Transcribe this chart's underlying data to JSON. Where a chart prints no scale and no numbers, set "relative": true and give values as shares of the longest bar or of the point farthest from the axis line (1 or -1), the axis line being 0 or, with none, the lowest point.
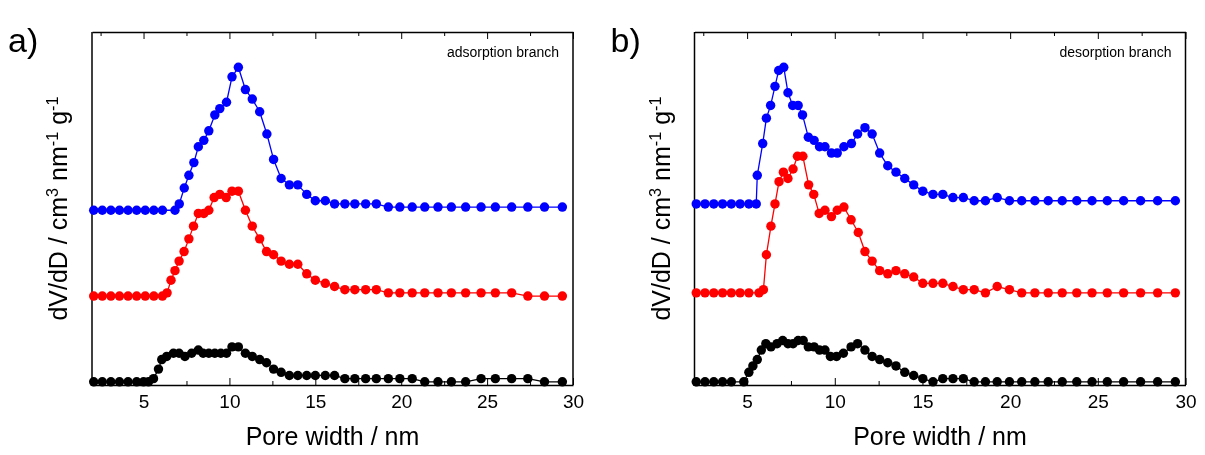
{
  "chart_data": [
    {
      "type": "line",
      "title": "a)",
      "xlabel": "Pore width / nm",
      "ylabel": "dV/dD / cm$^{3}$ nm$^{-1}$ g$^{-1}$",
      "annotations": [
        "adsorption branch"
      ],
      "relative": true,
      "xlim": [
        2,
        30
      ],
      "xticks": [
        {
          "value": 2.5,
          "label": null
        },
        5,
        {
          "value": 7.5,
          "label": null
        },
        10,
        {
          "value": 12.5,
          "label": null
        },
        15,
        {
          "value": 17.5,
          "label": null
        },
        20,
        {
          "value": 22.5,
          "label": null
        },
        25,
        {
          "value": 27.5,
          "label": null
        },
        30
      ],
      "marker": "circle",
      "grid": false,
      "series": [
        {
          "color": "#0000ff",
          "x": [
            2.1,
            2.6,
            3.1,
            3.6,
            4.1,
            4.6,
            5.1,
            5.6,
            6.1,
            6.83,
            7.08,
            7.37,
            7.64,
            7.93,
            8.19,
            8.51,
            8.8,
            9.15,
            9.44,
            9.83,
            10.15,
            10.52,
            10.93,
            11.33,
            11.76,
            12.18,
            12.57,
            13.01,
            13.49,
            13.98,
            14.5,
            15.0,
            15.58,
            16.12,
            16.72,
            17.3,
            17.93,
            18.55,
            19.25,
            19.92,
            20.64,
            21.37,
            22.14,
            22.92,
            23.75,
            24.65,
            25.48,
            26.43,
            27.37,
            28.34,
            29.38
          ],
          "values": [
            0.55,
            0.55,
            0.55,
            0.55,
            0.55,
            0.55,
            0.55,
            0.55,
            0.55,
            0.55,
            0.57,
            0.62,
            0.66,
            0.7,
            0.75,
            0.77,
            0.8,
            0.85,
            0.87,
            0.89,
            0.97,
            1.0,
            0.93,
            0.9,
            0.86,
            0.79,
            0.71,
            0.65,
            0.63,
            0.63,
            0.6,
            0.58,
            0.58,
            0.57,
            0.57,
            0.57,
            0.57,
            0.57,
            0.56,
            0.56,
            0.56,
            0.56,
            0.56,
            0.56,
            0.56,
            0.56,
            0.56,
            0.56,
            0.56,
            0.56,
            0.56
          ]
        },
        {
          "color": "#ff0000",
          "x": [
            2.1,
            2.6,
            3.1,
            3.6,
            4.1,
            4.6,
            5.1,
            5.6,
            6.1,
            6.37,
            6.6,
            6.83,
            7.07,
            7.36,
            7.64,
            7.91,
            8.19,
            8.51,
            8.8,
            9.11,
            9.44,
            9.81,
            10.15,
            10.52,
            10.93,
            11.33,
            11.76,
            12.16,
            12.57,
            13.01,
            13.49,
            13.98,
            14.5,
            15.0,
            15.58,
            16.12,
            16.72,
            17.3,
            17.93,
            18.55,
            19.25,
            19.92,
            20.64,
            21.37,
            22.14,
            22.92,
            23.75,
            24.65,
            25.48,
            26.43,
            27.37,
            28.34,
            29.38
          ],
          "values": [
            0.28,
            0.28,
            0.28,
            0.28,
            0.28,
            0.28,
            0.28,
            0.28,
            0.28,
            0.29,
            0.33,
            0.36,
            0.39,
            0.42,
            0.46,
            0.5,
            0.54,
            0.54,
            0.55,
            0.59,
            0.6,
            0.59,
            0.61,
            0.61,
            0.55,
            0.5,
            0.46,
            0.42,
            0.41,
            0.39,
            0.38,
            0.38,
            0.35,
            0.33,
            0.32,
            0.31,
            0.3,
            0.3,
            0.3,
            0.3,
            0.29,
            0.29,
            0.29,
            0.29,
            0.29,
            0.29,
            0.29,
            0.29,
            0.29,
            0.29,
            0.28,
            0.28,
            0.28
          ]
        },
        {
          "color": "#000000",
          "x": [
            2.1,
            2.6,
            3.1,
            3.6,
            4.1,
            4.6,
            5.0,
            5.29,
            5.58,
            5.87,
            6.06,
            6.35,
            6.74,
            7.07,
            7.41,
            7.8,
            8.19,
            8.47,
            8.8,
            9.15,
            9.5,
            9.83,
            10.15,
            10.52,
            10.93,
            11.33,
            11.76,
            12.16,
            12.57,
            13.01,
            13.49,
            13.98,
            14.5,
            15.0,
            15.58,
            16.12,
            16.72,
            17.3,
            17.93,
            18.55,
            19.25,
            19.92,
            20.64,
            21.37,
            22.14,
            22.92,
            23.75,
            24.65,
            25.48,
            26.43,
            27.37,
            28.34,
            29.38
          ],
          "values": [
            0.01,
            0.01,
            0.01,
            0.01,
            0.01,
            0.01,
            0.01,
            0.01,
            0.02,
            0.05,
            0.08,
            0.09,
            0.1,
            0.1,
            0.09,
            0.1,
            0.11,
            0.1,
            0.1,
            0.1,
            0.1,
            0.1,
            0.12,
            0.12,
            0.1,
            0.09,
            0.08,
            0.07,
            0.05,
            0.04,
            0.03,
            0.03,
            0.03,
            0.03,
            0.03,
            0.03,
            0.02,
            0.02,
            0.02,
            0.02,
            0.02,
            0.02,
            0.02,
            0.01,
            0.01,
            0.01,
            0.01,
            0.02,
            0.02,
            0.02,
            0.02,
            0.01,
            0.01
          ]
        }
      ]
    },
    {
      "type": "line",
      "title": "b)",
      "xlabel": "Pore width / nm",
      "ylabel": "dV/dD / cm$^{3}$ nm$^{-1}$ g$^{-1}$",
      "annotations": [
        "desorption branch"
      ],
      "relative": true,
      "xlim": [
        2,
        30
      ],
      "xticks": [
        {
          "value": 2.5,
          "label": null
        },
        5,
        {
          "value": 7.5,
          "label": null
        },
        10,
        {
          "value": 12.5,
          "label": null
        },
        15,
        {
          "value": 17.5,
          "label": null
        },
        20,
        {
          "value": 22.5,
          "label": null
        },
        25,
        {
          "value": 27.5,
          "label": null
        },
        30
      ],
      "marker": "circle",
      "grid": false,
      "series": [
        {
          "color": "#0000ff",
          "x": [
            2.1,
            2.6,
            3.1,
            3.6,
            4.1,
            4.6,
            5.1,
            5.52,
            5.58,
            5.89,
            6.1,
            6.34,
            6.59,
            6.8,
            7.09,
            7.33,
            7.6,
            7.91,
            8.16,
            8.49,
            8.82,
            9.13,
            9.44,
            9.81,
            10.14,
            10.52,
            10.95,
            11.3,
            11.72,
            12.13,
            12.56,
            13.02,
            13.49,
            13.99,
            14.5,
            15.02,
            15.6,
            16.16,
            16.74,
            17.33,
            17.95,
            18.59,
            19.26,
            19.96,
            20.66,
            21.41,
            22.17,
            22.97,
            23.8,
            24.67,
            25.54,
            26.47,
            27.44,
            28.41,
            29.42
          ],
          "values": [
            0.57,
            0.57,
            0.57,
            0.57,
            0.57,
            0.57,
            0.57,
            0.57,
            0.66,
            0.76,
            0.84,
            0.88,
            0.94,
            0.99,
            1.0,
            0.92,
            0.88,
            0.88,
            0.85,
            0.78,
            0.77,
            0.75,
            0.75,
            0.73,
            0.73,
            0.75,
            0.76,
            0.79,
            0.81,
            0.79,
            0.73,
            0.69,
            0.67,
            0.65,
            0.63,
            0.61,
            0.6,
            0.6,
            0.59,
            0.59,
            0.58,
            0.58,
            0.59,
            0.58,
            0.58,
            0.58,
            0.58,
            0.58,
            0.58,
            0.58,
            0.58,
            0.58,
            0.58,
            0.58,
            0.58
          ]
        },
        {
          "color": "#ff0000",
          "x": [
            2.1,
            2.6,
            3.1,
            3.6,
            4.1,
            4.6,
            5.1,
            5.68,
            5.93,
            6.1,
            6.36,
            6.59,
            6.82,
            7.07,
            7.33,
            7.62,
            7.87,
            8.18,
            8.51,
            8.8,
            9.11,
            9.44,
            9.81,
            10.14,
            10.52,
            10.93,
            11.34,
            11.72,
            12.13,
            12.56,
            13.02,
            13.49,
            13.99,
            14.5,
            15.02,
            15.6,
            16.16,
            16.74,
            17.33,
            17.95,
            18.59,
            19.26,
            19.96,
            20.66,
            21.41,
            22.17,
            22.97,
            23.8,
            24.67,
            25.54,
            26.47,
            27.44,
            28.41,
            29.42
          ],
          "values": [
            0.29,
            0.29,
            0.29,
            0.29,
            0.29,
            0.29,
            0.29,
            0.29,
            0.3,
            0.41,
            0.5,
            0.57,
            0.64,
            0.67,
            0.65,
            0.68,
            0.72,
            0.72,
            0.63,
            0.6,
            0.54,
            0.55,
            0.53,
            0.55,
            0.56,
            0.52,
            0.48,
            0.42,
            0.39,
            0.36,
            0.35,
            0.36,
            0.35,
            0.34,
            0.32,
            0.32,
            0.32,
            0.31,
            0.3,
            0.3,
            0.29,
            0.31,
            0.3,
            0.29,
            0.29,
            0.29,
            0.29,
            0.29,
            0.29,
            0.29,
            0.29,
            0.29,
            0.29,
            0.29
          ]
        },
        {
          "color": "#000000",
          "x": [
            2.1,
            2.6,
            3.1,
            3.6,
            4.1,
            4.81,
            5.1,
            5.33,
            5.58,
            5.81,
            6.07,
            6.36,
            6.71,
            7.03,
            7.33,
            7.62,
            7.91,
            8.2,
            8.49,
            8.82,
            9.13,
            9.44,
            9.75,
            10.1,
            10.49,
            10.93,
            11.3,
            11.72,
            12.13,
            12.56,
            13.02,
            13.49,
            13.99,
            14.5,
            15.02,
            15.6,
            16.16,
            16.74,
            17.33,
            17.95,
            18.59,
            19.26,
            19.96,
            20.66,
            21.41,
            22.17,
            22.97,
            23.8,
            24.67,
            25.54,
            26.47,
            27.44,
            28.41,
            29.42
          ],
          "values": [
            0.01,
            0.01,
            0.01,
            0.01,
            0.01,
            0.01,
            0.04,
            0.06,
            0.08,
            0.11,
            0.13,
            0.12,
            0.13,
            0.14,
            0.13,
            0.13,
            0.14,
            0.14,
            0.12,
            0.12,
            0.11,
            0.11,
            0.09,
            0.09,
            0.1,
            0.12,
            0.13,
            0.11,
            0.09,
            0.08,
            0.07,
            0.06,
            0.04,
            0.03,
            0.02,
            0.01,
            0.02,
            0.02,
            0.02,
            0.01,
            0.01,
            0.01,
            0.01,
            0.01,
            0.01,
            0.01,
            0.01,
            0.01,
            0.01,
            0.01,
            0.01,
            0.01,
            0.01,
            0.01
          ]
        }
      ]
    }
  ]
}
